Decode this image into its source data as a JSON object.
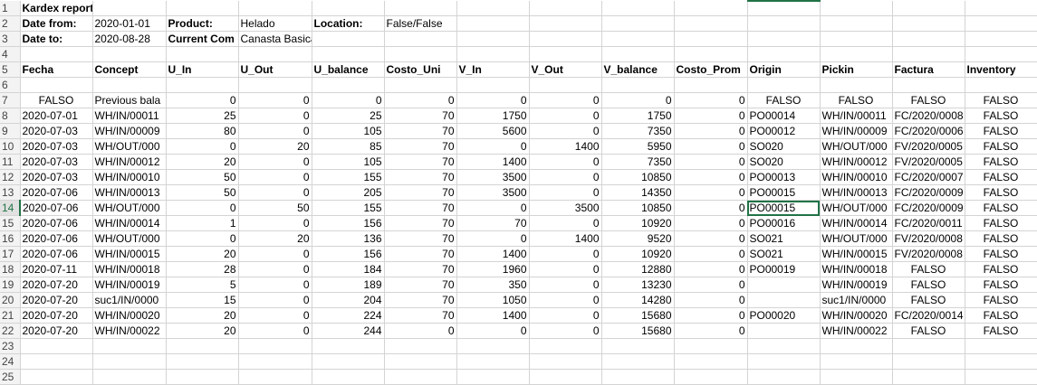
{
  "title": "Kardex report product",
  "meta": {
    "date_from_label": "Date from:",
    "date_from": "2020-01-01",
    "product_label": "Product:",
    "product": "Helado",
    "location_label": "Location:",
    "location": "False/False",
    "date_to_label": "Date to:",
    "date_to": "2020-08-28",
    "current_label": "Current Com",
    "current_value": "Canasta Basica"
  },
  "headers": [
    "Fecha",
    "Concept",
    "U_In",
    "U_Out",
    "U_balance",
    "Costo_Uni",
    "V_In",
    "V_Out",
    "V_balance",
    "Costo_Prom",
    "Origin",
    "Pickin",
    "Factura",
    "Inventory"
  ],
  "rows": [
    [
      "FALSO",
      "Previous bala",
      "0",
      "0",
      "0",
      "0",
      "0",
      "0",
      "0",
      "0",
      "FALSO",
      "FALSO",
      "FALSO",
      "FALSO"
    ],
    [
      "2020-07-01",
      "WH/IN/00011",
      "25",
      "0",
      "25",
      "70",
      "1750",
      "0",
      "1750",
      "0",
      "PO00014",
      "WH/IN/00011",
      "FC/2020/0008",
      "FALSO"
    ],
    [
      "2020-07-03",
      "WH/IN/00009",
      "80",
      "0",
      "105",
      "70",
      "5600",
      "0",
      "7350",
      "0",
      "PO00012",
      "WH/IN/00009",
      "FC/2020/0006",
      "FALSO"
    ],
    [
      "2020-07-03",
      "WH/OUT/000",
      "0",
      "20",
      "85",
      "70",
      "0",
      "1400",
      "5950",
      "0",
      "SO020",
      "WH/OUT/000",
      "FV/2020/0005",
      "FALSO"
    ],
    [
      "2020-07-03",
      "WH/IN/00012",
      "20",
      "0",
      "105",
      "70",
      "1400",
      "0",
      "7350",
      "0",
      "SO020",
      "WH/IN/00012",
      "FV/2020/0005",
      "FALSO"
    ],
    [
      "2020-07-03",
      "WH/IN/00010",
      "50",
      "0",
      "155",
      "70",
      "3500",
      "0",
      "10850",
      "0",
      "PO00013",
      "WH/IN/00010",
      "FC/2020/0007",
      "FALSO"
    ],
    [
      "2020-07-06",
      "WH/IN/00013",
      "50",
      "0",
      "205",
      "70",
      "3500",
      "0",
      "14350",
      "0",
      "PO00015",
      "WH/IN/00013",
      "FC/2020/0009",
      "FALSO"
    ],
    [
      "2020-07-06",
      "WH/OUT/000",
      "0",
      "50",
      "155",
      "70",
      "0",
      "3500",
      "10850",
      "0",
      "PO00015",
      "WH/OUT/000",
      "FC/2020/0009",
      "FALSO"
    ],
    [
      "2020-07-06",
      "WH/IN/00014",
      "1",
      "0",
      "156",
      "70",
      "70",
      "0",
      "10920",
      "0",
      "PO00016",
      "WH/IN/00014",
      "FC/2020/0011",
      "FALSO"
    ],
    [
      "2020-07-06",
      "WH/OUT/000",
      "0",
      "20",
      "136",
      "70",
      "0",
      "1400",
      "9520",
      "0",
      "SO021",
      "WH/OUT/000",
      "FV/2020/0008",
      "FALSO"
    ],
    [
      "2020-07-06",
      "WH/IN/00015",
      "20",
      "0",
      "156",
      "70",
      "1400",
      "0",
      "10920",
      "0",
      "SO021",
      "WH/IN/00015",
      "FV/2020/0008",
      "FALSO"
    ],
    [
      "2020-07-11",
      "WH/IN/00018",
      "28",
      "0",
      "184",
      "70",
      "1960",
      "0",
      "12880",
      "0",
      "PO00019",
      "WH/IN/00018",
      "FALSO",
      "FALSO"
    ],
    [
      "2020-07-20",
      "WH/IN/00019",
      "5",
      "0",
      "189",
      "70",
      "350",
      "0",
      "13230",
      "0",
      "",
      "WH/IN/00019",
      "FALSO",
      "FALSO"
    ],
    [
      "2020-07-20",
      "suc1/IN/0000",
      "15",
      "0",
      "204",
      "70",
      "1050",
      "0",
      "14280",
      "0",
      "",
      "suc1/IN/0000",
      "FALSO",
      "FALSO"
    ],
    [
      "2020-07-20",
      "WH/IN/00020",
      "20",
      "0",
      "224",
      "70",
      "1400",
      "0",
      "15680",
      "0",
      "PO00020",
      "WH/IN/00020",
      "FC/2020/0014",
      "FALSO"
    ],
    [
      "2020-07-20",
      "WH/IN/00022",
      "20",
      "0",
      "244",
      "0",
      "0",
      "0",
      "15680",
      "0",
      "",
      "WH/IN/00022",
      "FALSO",
      "FALSO"
    ]
  ],
  "row_numbers": [
    "1",
    "2",
    "3",
    "4",
    "5",
    "6",
    "7",
    "8",
    "9",
    "10",
    "11",
    "12",
    "13",
    "14",
    "15",
    "16",
    "17",
    "18",
    "19",
    "20",
    "21",
    "22",
    "23",
    "24",
    "25"
  ]
}
